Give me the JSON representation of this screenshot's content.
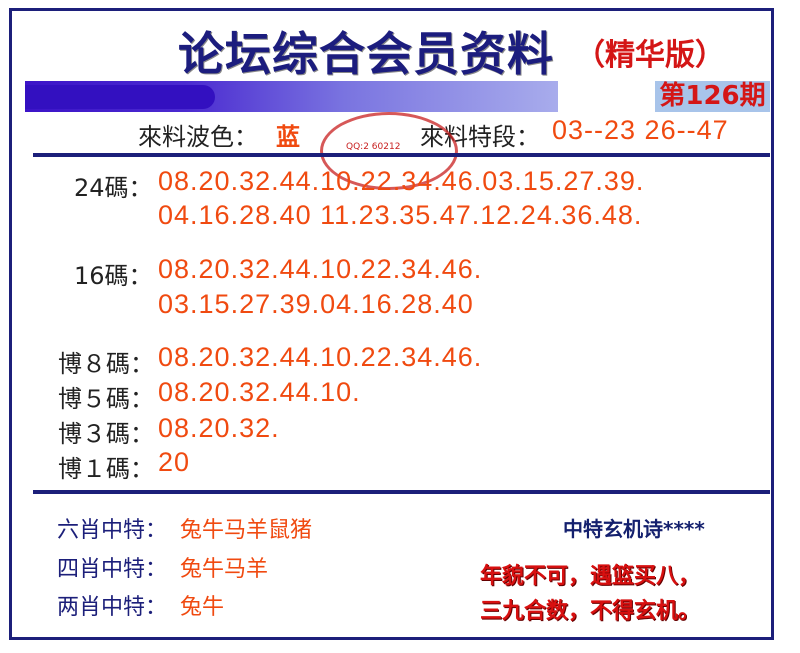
{
  "header": {
    "title": "论坛综合会员资料",
    "edition": "（精华版）",
    "issue": "第126期"
  },
  "info": {
    "color_label": "來料波色：",
    "color_value": "蓝",
    "segment_label": "來料特段：",
    "segment_value": "03--23 26--47"
  },
  "stamp": {
    "text": "QQ:2 60212"
  },
  "rows": [
    {
      "label": "24碼：",
      "lines": [
        "08.20.32.44.10.22.34.46.03.15.27.39.",
        "04.16.28.40 11.23.35.47.12.24.36.48."
      ]
    },
    {
      "label": "16碼：",
      "lines": [
        "08.20.32.44.10.22.34.46.",
        "03.15.27.39.04.16.28.40"
      ]
    },
    {
      "label": "博８碼：",
      "lines": [
        "08.20.32.44.10.22.34.46."
      ]
    },
    {
      "label": "博５碼：",
      "lines": [
        "08.20.32.44.10."
      ]
    },
    {
      "label": "博３碼：",
      "lines": [
        "08.20.32."
      ]
    },
    {
      "label": "博１碼：",
      "lines": [
        "20"
      ]
    }
  ],
  "zodiac": [
    {
      "label": "六肖中特：",
      "value": "兔牛马羊鼠猪"
    },
    {
      "label": "四肖中特：",
      "value": "兔牛马羊"
    },
    {
      "label": "两肖中特：",
      "value": "兔牛"
    }
  ],
  "poem": {
    "title": "中特玄机诗****",
    "lines": [
      "年貌不可，遇篮买八，",
      "三九合数，不得玄机。"
    ]
  },
  "colors": {
    "navy": "#1c1f7a",
    "orange": "#f04a10",
    "red": "#d41616"
  }
}
